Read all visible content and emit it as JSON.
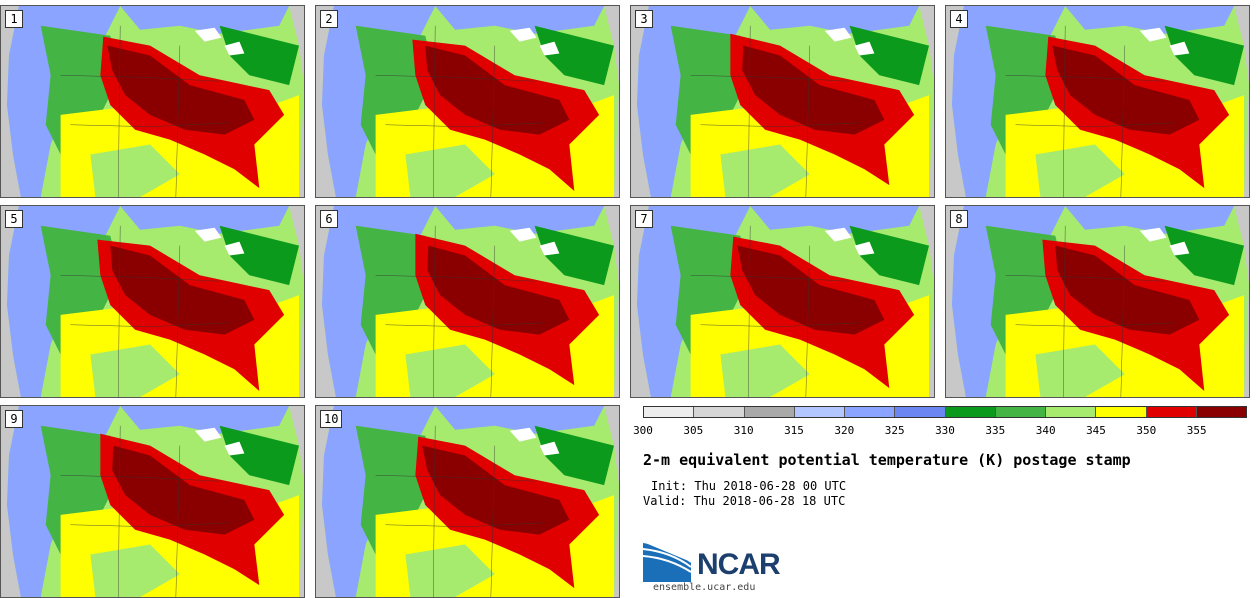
{
  "stamps": [
    {
      "label": "1"
    },
    {
      "label": "2"
    },
    {
      "label": "3"
    },
    {
      "label": "4"
    },
    {
      "label": "5"
    },
    {
      "label": "6"
    },
    {
      "label": "7"
    },
    {
      "label": "8"
    },
    {
      "label": "9"
    },
    {
      "label": "10"
    }
  ],
  "colorbar": {
    "ticks": [
      "300",
      "305",
      "310",
      "315",
      "320",
      "325",
      "330",
      "335",
      "340",
      "345",
      "350",
      "355"
    ],
    "colors": [
      "#ededed",
      "#d6d6d6",
      "#a9a9a9",
      "#b2c6ff",
      "#8aa4ff",
      "#6b86f0",
      "#0c9a1c",
      "#44b444",
      "#a6ea6e",
      "#ffff00",
      "#e00000",
      "#8a0000"
    ]
  },
  "map_colors": {
    "ocean": "#c8c8c8",
    "lake": "#ffffff",
    "land_base": "#a6ea6e",
    "cool": "#8aa4ff",
    "green": "#44b444",
    "dkgreen": "#0c9a1c",
    "yellow": "#ffff00",
    "red": "#e00000",
    "maroon": "#8a0000"
  },
  "title": "2-m equivalent potential temperature (K) postage stamp",
  "init_text": "Init: Thu 2018-06-28 00 UTC",
  "valid_text": "Valid: Thu 2018-06-28 18 UTC",
  "logo": {
    "text": "NCAR",
    "accent": "#1a6fb8",
    "text_color": "#1c3f6e"
  },
  "site": "ensemble.ucar.edu"
}
